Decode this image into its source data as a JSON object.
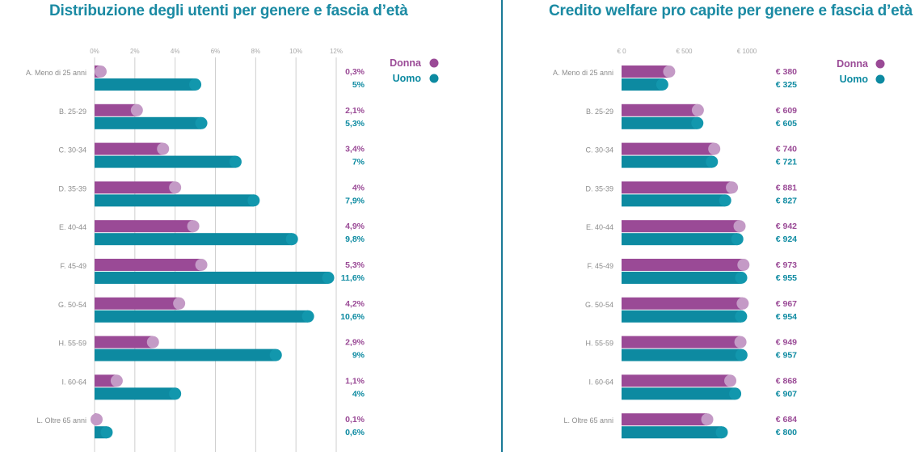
{
  "colors": {
    "donna_bar": "#9a4a96",
    "donna_cap": "#c49ac6",
    "uomo_bar": "#0d8aa1",
    "uomo_cap": "#1297ad",
    "title": "#1a8aa3",
    "grid": "#cfcfcf"
  },
  "legend": {
    "donna": "Donna",
    "uomo": "Uomo"
  },
  "chart_data": [
    {
      "type": "bar",
      "orientation": "horizontal",
      "title": "Distribuzione degli utenti per genere e fascia d’età",
      "categories": [
        "A. Meno di 25 anni",
        "B. 25-29",
        "C. 30-34",
        "D. 35-39",
        "E. 40-44",
        "F. 45-49",
        "G. 50-54",
        "H. 55-59",
        "I. 60-64",
        "L. Oltre 65 anni"
      ],
      "xlim": [
        0,
        12
      ],
      "ticks": [
        0,
        2,
        4,
        6,
        8,
        10,
        12
      ],
      "tick_labels": [
        "0%",
        "2%",
        "4%",
        "6%",
        "8%",
        "10%",
        "12%"
      ],
      "grid": true,
      "legend_position": "top-right",
      "series": [
        {
          "name": "Donna",
          "values": [
            0.3,
            2.1,
            3.4,
            4,
            4.9,
            5.3,
            4.2,
            2.9,
            1.1,
            0.1
          ],
          "labels": [
            "0,3%",
            "2,1%",
            "3,4%",
            "4%",
            "4,9%",
            "5,3%",
            "4,2%",
            "2,9%",
            "1,1%",
            "0,1%"
          ]
        },
        {
          "name": "Uomo",
          "values": [
            5,
            5.3,
            7,
            7.9,
            9.8,
            11.6,
            10.6,
            9,
            4,
            0.6
          ],
          "labels": [
            "5%",
            "5,3%",
            "7%",
            "7,9%",
            "9,8%",
            "11,6%",
            "10,6%",
            "9%",
            "4%",
            "0,6%"
          ]
        }
      ]
    },
    {
      "type": "bar",
      "orientation": "horizontal",
      "title": "Credito welfare pro capite per genere e fascia d’età",
      "categories": [
        "A. Meno di 25 anni",
        "B. 25-29",
        "C. 30-34",
        "D. 35-39",
        "E. 40-44",
        "F. 45-49",
        "G. 50-54",
        "H. 55-59",
        "I. 60-64",
        "L. Oltre 65 anni"
      ],
      "xlim": [
        0,
        1000
      ],
      "ticks": [
        0,
        500,
        1000
      ],
      "tick_labels": [
        "€ 0",
        "€ 500",
        "€ 1000"
      ],
      "grid": false,
      "legend_position": "top-right",
      "series": [
        {
          "name": "Donna",
          "values": [
            380,
            609,
            740,
            881,
            942,
            973,
            967,
            949,
            868,
            684
          ],
          "labels": [
            "€ 380",
            "€ 609",
            "€ 740",
            "€ 881",
            "€ 942",
            "€ 973",
            "€ 967",
            "€ 949",
            "€ 868",
            "€ 684"
          ]
        },
        {
          "name": "Uomo",
          "values": [
            325,
            605,
            721,
            827,
            924,
            955,
            954,
            957,
            907,
            800
          ],
          "labels": [
            "€ 325",
            "€ 605",
            "€ 721",
            "€ 827",
            "€ 924",
            "€ 955",
            "€ 954",
            "€ 957",
            "€ 907",
            "€ 800"
          ]
        }
      ]
    }
  ]
}
